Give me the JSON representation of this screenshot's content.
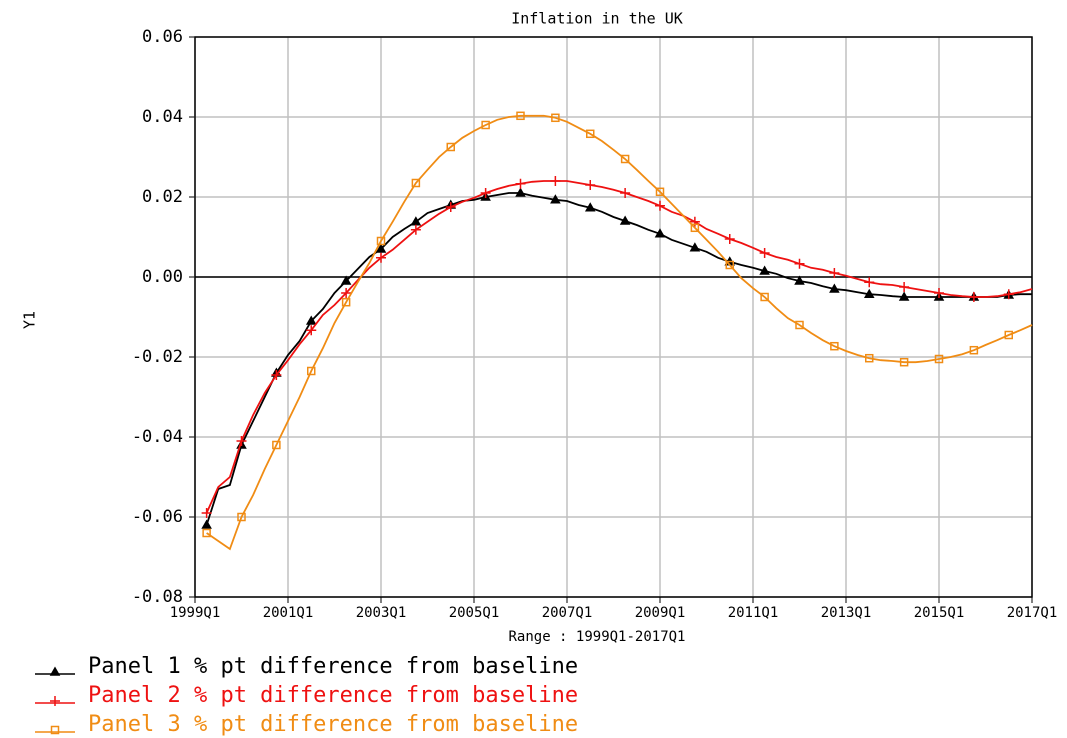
{
  "chart_data": {
    "type": "line",
    "title": "Inflation in the UK",
    "ylabel": "Y1",
    "xlabel": "Range : 1999Q1-2017Q1",
    "x": [
      "1999Q2",
      "1999Q3",
      "1999Q4",
      "2000Q1",
      "2000Q2",
      "2000Q3",
      "2000Q4",
      "2001Q1",
      "2001Q2",
      "2001Q3",
      "2001Q4",
      "2002Q1",
      "2002Q2",
      "2002Q3",
      "2002Q4",
      "2003Q1",
      "2003Q2",
      "2003Q3",
      "2003Q4",
      "2004Q1",
      "2004Q2",
      "2004Q3",
      "2004Q4",
      "2005Q1",
      "2005Q2",
      "2005Q3",
      "2005Q4",
      "2006Q1",
      "2006Q2",
      "2006Q3",
      "2006Q4",
      "2007Q1",
      "2007Q2",
      "2007Q3",
      "2007Q4",
      "2008Q1",
      "2008Q2",
      "2008Q3",
      "2008Q4",
      "2009Q1",
      "2009Q2",
      "2009Q3",
      "2009Q4",
      "2010Q1",
      "2010Q2",
      "2010Q3",
      "2010Q4",
      "2011Q1",
      "2011Q2",
      "2011Q3",
      "2011Q4",
      "2012Q1",
      "2012Q2",
      "2012Q3",
      "2012Q4",
      "2013Q1",
      "2013Q2",
      "2013Q3",
      "2013Q4",
      "2014Q1",
      "2014Q2",
      "2014Q3",
      "2014Q4",
      "2015Q1",
      "2015Q2",
      "2015Q3",
      "2015Q4",
      "2016Q1",
      "2016Q2",
      "2016Q3",
      "2016Q4",
      "2017Q1"
    ],
    "xlim": [
      "1999Q1",
      "2017Q1"
    ],
    "xticks": [
      "1999Q1",
      "2001Q1",
      "2003Q1",
      "2005Q1",
      "2007Q1",
      "2009Q1",
      "2011Q1",
      "2013Q1",
      "2015Q1",
      "2017Q1"
    ],
    "ylim": [
      -0.08,
      0.06
    ],
    "yticks": [
      0.06,
      0.04,
      0.02,
      {
        "value": 0,
        "label": "0.00"
      },
      -0.02,
      -0.04,
      -0.06,
      -0.08
    ],
    "grid": true,
    "zero_line": true,
    "legend": "bottom-left",
    "series": [
      {
        "name": "Panel 1 % pt difference from baseline",
        "color": "#000000",
        "marker": "triangle",
        "values": [
          -0.062,
          -0.053,
          -0.052,
          -0.042,
          -0.036,
          -0.03,
          -0.024,
          -0.0195,
          -0.016,
          -0.011,
          -0.008,
          -0.004,
          -0.001,
          0.002,
          0.005,
          0.007,
          0.01,
          0.012,
          0.0138,
          0.016,
          0.017,
          0.018,
          0.019,
          0.0193,
          0.02,
          0.0205,
          0.021,
          0.021,
          0.0203,
          0.0198,
          0.0193,
          0.019,
          0.018,
          0.0173,
          0.0163,
          0.015,
          0.014,
          0.013,
          0.0118,
          0.0108,
          0.0093,
          0.0083,
          0.0073,
          0.0063,
          0.0048,
          0.0038,
          0.003,
          0.0023,
          0.0015,
          0.0008,
          -0.0003,
          -0.001,
          -0.0015,
          -0.0023,
          -0.003,
          -0.0033,
          -0.0038,
          -0.0043,
          -0.0045,
          -0.0048,
          -0.005,
          -0.005,
          -0.005,
          -0.005,
          -0.005,
          -0.005,
          -0.005,
          -0.005,
          -0.005,
          -0.0045,
          -0.0043,
          -0.0043
        ]
      },
      {
        "name": "Panel 2 % pt difference from baseline",
        "color": "#ee1111",
        "marker": "plus",
        "values": [
          -0.059,
          -0.0525,
          -0.05,
          -0.041,
          -0.0345,
          -0.029,
          -0.0245,
          -0.0208,
          -0.0168,
          -0.0133,
          -0.0095,
          -0.007,
          -0.004,
          -0.0008,
          0.0023,
          0.0048,
          0.0068,
          0.0093,
          0.0118,
          0.0138,
          0.0158,
          0.0175,
          0.0188,
          0.0198,
          0.021,
          0.022,
          0.0228,
          0.0233,
          0.0238,
          0.024,
          0.024,
          0.024,
          0.0235,
          0.023,
          0.0225,
          0.0218,
          0.021,
          0.02,
          0.019,
          0.0178,
          0.0163,
          0.0153,
          0.0138,
          0.012,
          0.0108,
          0.0095,
          0.0085,
          0.0073,
          0.006,
          0.005,
          0.0043,
          0.0033,
          0.0023,
          0.0018,
          0.001,
          0.0003,
          -0.0005,
          -0.0013,
          -0.0018,
          -0.002,
          -0.0025,
          -0.003,
          -0.0035,
          -0.004,
          -0.0045,
          -0.0048,
          -0.005,
          -0.005,
          -0.0048,
          -0.0043,
          -0.0038,
          -0.003
        ]
      },
      {
        "name": "Panel 3 % pt difference from baseline",
        "color": "#f08c14",
        "marker": "square",
        "values": [
          -0.064,
          -0.066,
          -0.068,
          -0.06,
          -0.0545,
          -0.048,
          -0.042,
          -0.036,
          -0.03,
          -0.0235,
          -0.0178,
          -0.0115,
          -0.0063,
          -0.0013,
          0.0035,
          0.009,
          0.0138,
          0.0188,
          0.0235,
          0.0268,
          0.03,
          0.0325,
          0.0348,
          0.0365,
          0.038,
          0.0393,
          0.04,
          0.0403,
          0.0403,
          0.0403,
          0.0398,
          0.0388,
          0.0373,
          0.0358,
          0.034,
          0.0318,
          0.0295,
          0.0268,
          0.024,
          0.0213,
          0.0183,
          0.0153,
          0.0123,
          0.0093,
          0.0063,
          0.003,
          -0.0003,
          -0.0028,
          -0.005,
          -0.0078,
          -0.0103,
          -0.012,
          -0.014,
          -0.0158,
          -0.0173,
          -0.0185,
          -0.0195,
          -0.0203,
          -0.0208,
          -0.021,
          -0.0213,
          -0.0213,
          -0.021,
          -0.0205,
          -0.02,
          -0.0193,
          -0.0183,
          -0.017,
          -0.0158,
          -0.0145,
          -0.0133,
          -0.012
        ]
      }
    ]
  }
}
